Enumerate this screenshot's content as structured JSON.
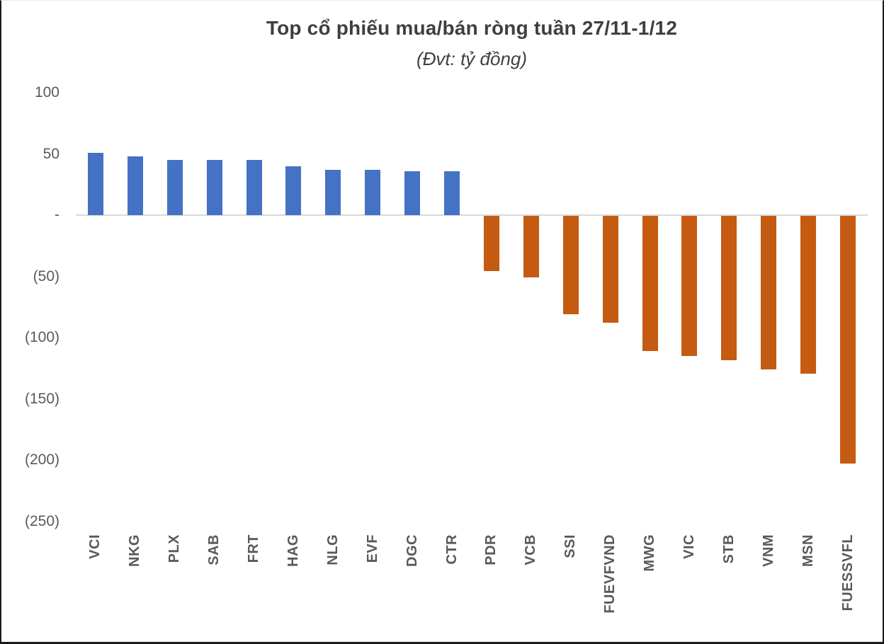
{
  "chart": {
    "title": "Top cổ phiếu mua/bán ròng tuần 27/11-1/12",
    "subtitle": "(Đvt: tỷ đồng)"
  },
  "chart_data": {
    "type": "bar",
    "title": "Top cổ phiếu mua/bán ròng tuần 27/11-1/12",
    "subtitle": "(Đvt: tỷ đồng)",
    "unit": "tỷ đồng",
    "categories": [
      "VCI",
      "NKG",
      "PLX",
      "SAB",
      "FRT",
      "HAG",
      "NLG",
      "EVF",
      "DGC",
      "CTR",
      "PDR",
      "VCB",
      "SSI",
      "FUEVFVND",
      "MWG",
      "VIC",
      "STB",
      "VNM",
      "MSN",
      "FUESSVFL"
    ],
    "values": [
      51,
      48,
      45,
      45,
      45,
      40,
      37,
      37,
      36,
      36,
      -45,
      -50,
      -80,
      -87,
      -110,
      -114,
      -118,
      -125,
      -129,
      -202
    ],
    "xlabel": "",
    "ylabel": "",
    "ylim": [
      -250,
      100
    ],
    "ytick_values": [
      100,
      50,
      0,
      -50,
      -100,
      -150,
      -200,
      -250
    ],
    "ytick_labels": [
      "100",
      "50",
      "-",
      "(50)",
      "(100)",
      "(150)",
      "(200)",
      "(250)"
    ],
    "positive_color": "#4472C4",
    "negative_color": "#C55A11",
    "axis_line_color": "#D9D9D9",
    "tick_label_color": "#595959",
    "title_color": "#3F3F3F",
    "grid": false,
    "legend": false,
    "x_labels_rotated": "90deg reading bottom-to-top"
  }
}
